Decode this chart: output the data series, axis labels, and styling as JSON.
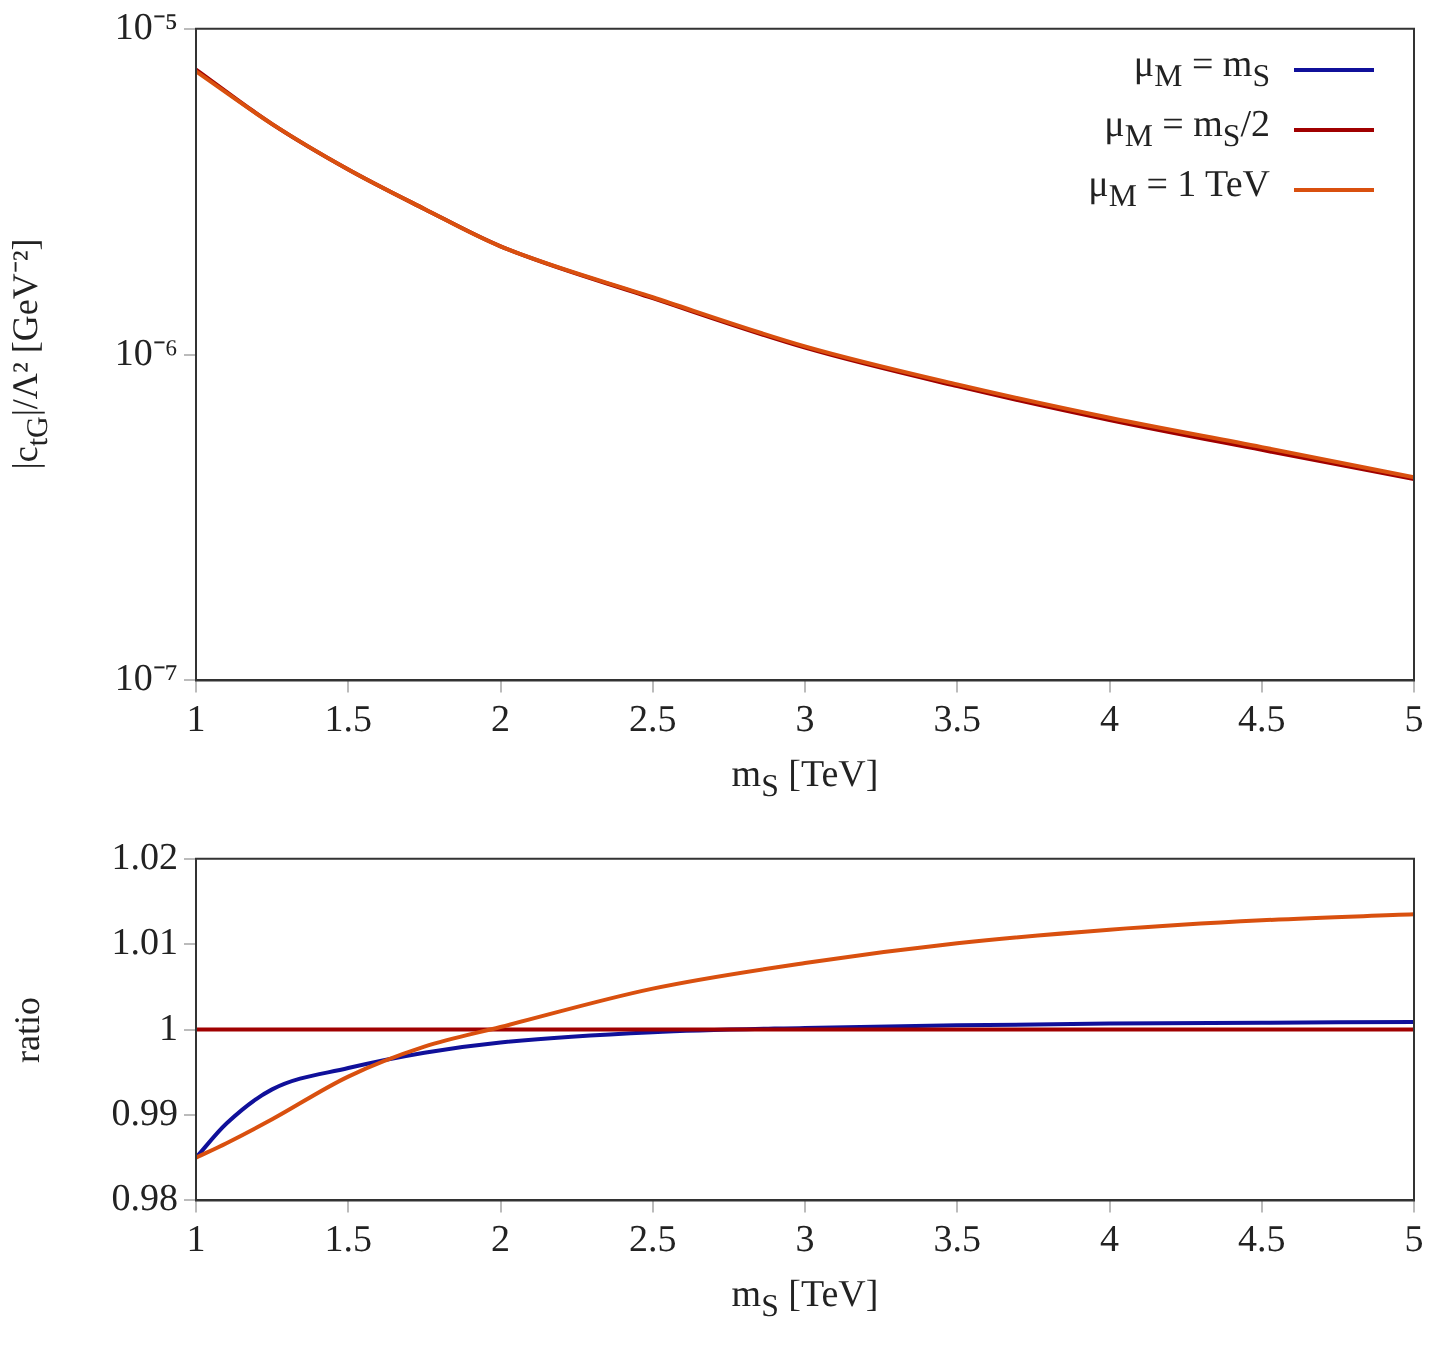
{
  "chart_data": [
    {
      "type": "line",
      "xlabel": "m$_{S}$ [TeV]",
      "ylabel": "|c$_{tG}$|/Λ² [GeV⁻²]",
      "log": "y",
      "grid": false,
      "legend": "top right",
      "marker": "none",
      "xlim": [
        1,
        5
      ],
      "xticks": [
        1,
        1.5,
        2,
        2.5,
        3,
        3.5,
        4,
        4.5,
        5
      ],
      "ylim": [
        1e-07,
        1e-05
      ],
      "yticks": [
        {
          "value": 1e-07,
          "label": "10⁻⁷"
        },
        {
          "value": 1e-06,
          "label": "10⁻⁶"
        },
        {
          "value": 1e-05,
          "label": "10⁻⁵"
        }
      ],
      "x": [
        1,
        1.25,
        1.5,
        1.75,
        2,
        2.5,
        3,
        3.5,
        4,
        4.5,
        5
      ],
      "series": [
        {
          "name": "μ$_{M}$ = m$_{S}$",
          "color": "#10109a",
          "values": [
            null,
            null,
            null,
            null,
            null,
            null,
            null,
            null,
            null,
            null,
            null
          ]
        },
        {
          "name": "μ$_{M}$ = m$_{S}$/2",
          "color": "#a00000",
          "values": [
            7.5e-06,
            5.1e-06,
            3.7e-06,
            2.8e-06,
            2.15e-06,
            1.49e-06,
            1.05e-06,
            8e-07,
            6.3e-07,
            5.1e-07,
            4.15e-07
          ]
        },
        {
          "name": "μ$_{M}$ = 1 TeV",
          "color": "#d9500f",
          "values": [
            7.4e-06,
            5.1e-06,
            3.7e-06,
            2.8e-06,
            2.15e-06,
            1.5e-06,
            1.06e-06,
            8.1e-07,
            6.4e-07,
            5.2e-07,
            4.2e-07
          ]
        }
      ]
    },
    {
      "type": "line",
      "xlabel": "m$_{S}$ [TeV]",
      "ylabel": "ratio",
      "grid": false,
      "marker": "none",
      "xlim": [
        1,
        5
      ],
      "xticks": [
        1,
        1.5,
        2,
        2.5,
        3,
        3.5,
        4,
        4.5,
        5
      ],
      "ylim": [
        0.98,
        1.02
      ],
      "yticks": [
        0.98,
        0.99,
        1,
        1.01,
        1.02
      ],
      "x": [
        1,
        1.1,
        1.25,
        1.5,
        1.75,
        2,
        2.5,
        3,
        3.5,
        4,
        4.5,
        5
      ],
      "series": [
        {
          "color": "#10109a",
          "values": [
            0.985,
            0.989,
            0.993,
            0.9955,
            0.9973,
            0.9985,
            0.9997,
            1.0002,
            1.0005,
            1.0007,
            1.0008,
            1.0009
          ]
        },
        {
          "color": "#a00000",
          "values": [
            1,
            1,
            1,
            1,
            1,
            1,
            1,
            1,
            1,
            1,
            1,
            1
          ]
        },
        {
          "color": "#d9500f",
          "values": [
            0.985,
            0.9867,
            0.9895,
            0.9945,
            0.998,
            1.0003,
            1.0048,
            1.0078,
            1.0101,
            1.0117,
            1.0128,
            1.0135
          ]
        }
      ]
    }
  ]
}
